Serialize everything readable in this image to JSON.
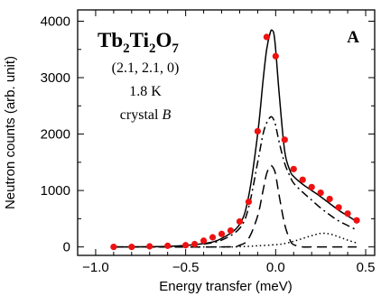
{
  "chart_data": {
    "type": "scatter",
    "panel_label": "A",
    "annotations": {
      "compound": {
        "base1": "Tb",
        "sub1": "2",
        "base2": "Ti",
        "sub2": "2",
        "base3": "O",
        "sub3": "7"
      },
      "wavevector": "(2.1, 2.1, 0)",
      "temperature": "1.8 K",
      "sample": {
        "prefix": "crystal ",
        "letter": "B"
      }
    },
    "xlabel": "Energy transfer (meV)",
    "ylabel": "Neutron counts (arb. unit)",
    "xlim": [
      -1.1,
      0.55
    ],
    "ylim": [
      -150,
      4200
    ],
    "x_ticks": [
      -1.0,
      -0.5,
      0.0,
      0.5
    ],
    "x_tick_labels": [
      "−1.0",
      "−0.5",
      "0.0",
      "0.5"
    ],
    "y_ticks": [
      0,
      1000,
      2000,
      3000,
      4000
    ],
    "y_tick_labels": [
      "0",
      "1000",
      "2000",
      "3000",
      "4000"
    ],
    "grid": false,
    "colors": {
      "data_points": "#ee1111",
      "lines": "#000000"
    },
    "series": [
      {
        "style": "points",
        "x": [
          -0.9,
          -0.8,
          -0.7,
          -0.6,
          -0.5,
          -0.45,
          -0.4,
          -0.35,
          -0.3,
          -0.25,
          -0.2,
          -0.15,
          -0.1,
          -0.05,
          0.0,
          0.05,
          0.1,
          0.15,
          0.2,
          0.25,
          0.3,
          0.35,
          0.4,
          0.45
        ],
        "y": [
          0,
          0,
          10,
          20,
          30,
          50,
          110,
          170,
          230,
          290,
          450,
          800,
          2050,
          3720,
          3380,
          1900,
          1380,
          1190,
          1060,
          960,
          850,
          700,
          590,
          470
        ]
      },
      {
        "style": "solid",
        "x": [
          -0.9,
          -0.6,
          -0.4,
          -0.3,
          -0.2,
          -0.15,
          -0.1,
          -0.07,
          -0.05,
          -0.03,
          -0.02,
          -0.01,
          0.0,
          0.02,
          0.05,
          0.08,
          0.1,
          0.15,
          0.2,
          0.25,
          0.3,
          0.35,
          0.4,
          0.45
        ],
        "y": [
          0,
          10,
          60,
          150,
          400,
          900,
          2000,
          2950,
          3500,
          3800,
          3840,
          3780,
          3500,
          2700,
          1700,
          1350,
          1250,
          1110,
          1000,
          890,
          770,
          650,
          550,
          450
        ]
      },
      {
        "style": "dash-dot",
        "x": [
          -0.4,
          -0.3,
          -0.2,
          -0.15,
          -0.1,
          -0.07,
          -0.05,
          -0.03,
          -0.02,
          -0.01,
          0.0,
          0.02,
          0.05,
          0.08,
          0.1,
          0.15,
          0.2,
          0.25,
          0.3,
          0.35,
          0.4,
          0.45
        ],
        "y": [
          50,
          120,
          330,
          700,
          1500,
          2000,
          2200,
          2300,
          2300,
          2250,
          2150,
          1850,
          1480,
          1250,
          1130,
          970,
          830,
          690,
          570,
          460,
          380,
          300
        ]
      },
      {
        "style": "long-dash",
        "x": [
          -0.9,
          -0.3,
          -0.2,
          -0.15,
          -0.1,
          -0.07,
          -0.05,
          -0.03,
          -0.02,
          -0.01,
          0.0,
          0.02,
          0.05,
          0.08,
          0.1,
          0.15,
          0.2,
          0.45
        ],
        "y": [
          0,
          0,
          30,
          150,
          550,
          1000,
          1300,
          1430,
          1430,
          1380,
          1280,
          900,
          400,
          120,
          40,
          0,
          0,
          0
        ]
      },
      {
        "style": "dotted",
        "x": [
          -0.9,
          -0.3,
          -0.2,
          -0.1,
          0.0,
          0.05,
          0.1,
          0.15,
          0.2,
          0.25,
          0.3,
          0.35,
          0.4,
          0.45
        ],
        "y": [
          0,
          0,
          5,
          20,
          40,
          60,
          100,
          150,
          200,
          240,
          230,
          180,
          120,
          70
        ]
      }
    ]
  }
}
